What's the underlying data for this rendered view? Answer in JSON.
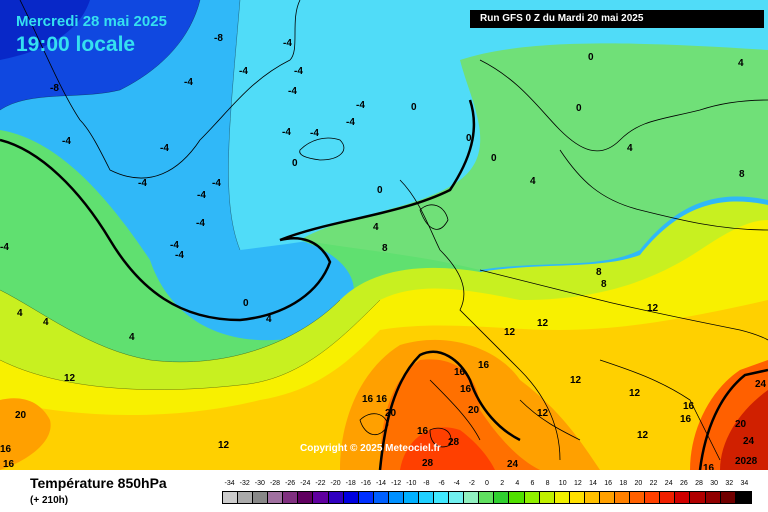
{
  "header": {
    "date": "Mercredi 28 mai 2025",
    "time": "19:00 locale",
    "run": "Run GFS 0 Z du Mardi 20 mai 2025"
  },
  "copyright": "Copyright © 2025 Meteociel.fr",
  "footer": {
    "title": "Température 850hPa",
    "subtitle": "(+ 210h)"
  },
  "legend": {
    "values": [
      "-34",
      "-32",
      "-30",
      "-28",
      "-26",
      "-24",
      "-22",
      "-20",
      "-18",
      "-16",
      "-14",
      "-12",
      "-10",
      "-8",
      "-6",
      "-4",
      "-2",
      "0",
      "2",
      "4",
      "6",
      "8",
      "10",
      "12",
      "14",
      "16",
      "18",
      "20",
      "22",
      "24",
      "26",
      "28",
      "30",
      "32",
      "34"
    ],
    "colors": [
      "#cccccc",
      "#aaaaaa",
      "#888888",
      "#a070a0",
      "#803080",
      "#600060",
      "#6000a0",
      "#3000c0",
      "#0000e0",
      "#0030ff",
      "#0060ff",
      "#0090ff",
      "#00b0ff",
      "#20d0ff",
      "#40e8ff",
      "#70f0f0",
      "#90f0c0",
      "#60e060",
      "#30d030",
      "#50e000",
      "#90f000",
      "#c0f000",
      "#f0f000",
      "#ffe000",
      "#ffc000",
      "#ffa000",
      "#ff8000",
      "#ff6000",
      "#ff4000",
      "#f02000",
      "#d00000",
      "#b00000",
      "#900000",
      "#700000",
      "#000000"
    ]
  },
  "map_labels": [
    {
      "text": "-8"
    },
    {
      "text": "-4"
    },
    {
      "text": "-4"
    },
    {
      "text": "-4"
    },
    {
      "text": "-4"
    },
    {
      "text": "-4"
    },
    {
      "text": "-8"
    },
    {
      "text": "-4"
    },
    {
      "text": "-4"
    },
    {
      "text": "-4"
    },
    {
      "text": "-4"
    },
    {
      "text": "-4"
    },
    {
      "text": "-4"
    },
    {
      "text": "-4"
    },
    {
      "text": "-4"
    },
    {
      "text": "-4"
    },
    {
      "text": "-4"
    },
    {
      "text": "-4"
    },
    {
      "text": "0"
    },
    {
      "text": "0"
    },
    {
      "text": "0"
    },
    {
      "text": "0"
    },
    {
      "text": "0"
    },
    {
      "text": "0"
    },
    {
      "text": "0"
    },
    {
      "text": "0"
    },
    {
      "text": "4"
    },
    {
      "text": "4"
    },
    {
      "text": "4"
    },
    {
      "text": "4"
    },
    {
      "text": "4"
    },
    {
      "text": "4"
    },
    {
      "text": "8"
    },
    {
      "text": "8"
    },
    {
      "text": "8"
    },
    {
      "text": "8"
    },
    {
      "text": "12"
    },
    {
      "text": "12"
    },
    {
      "text": "12"
    },
    {
      "text": "12"
    },
    {
      "text": "12"
    },
    {
      "text": "12"
    },
    {
      "text": "12"
    },
    {
      "text": "12"
    },
    {
      "text": "16"
    },
    {
      "text": "16"
    },
    {
      "text": "16"
    },
    {
      "text": "16"
    },
    {
      "text": "16"
    },
    {
      "text": "16"
    },
    {
      "text": "16"
    },
    {
      "text": "16"
    },
    {
      "text": "16"
    },
    {
      "text": "20"
    },
    {
      "text": "20"
    },
    {
      "text": "20"
    },
    {
      "text": "20"
    },
    {
      "text": "24"
    },
    {
      "text": "24"
    },
    {
      "text": "24"
    },
    {
      "text": "28"
    },
    {
      "text": "28"
    },
    {
      "text": "2028"
    },
    {
      "text": "-4"
    },
    {
      "text": "-4"
    },
    {
      "text": "4"
    },
    {
      "text": "4"
    },
    {
      "text": "12"
    },
    {
      "text": "16"
    },
    {
      "text": "16"
    }
  ]
}
